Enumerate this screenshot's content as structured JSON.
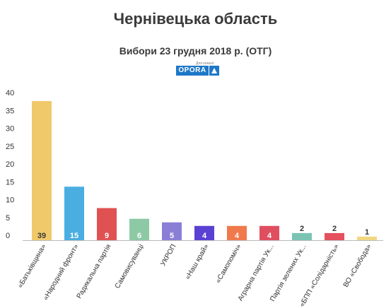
{
  "header": {
    "title": "Чернівецька область",
    "subtitle": "Вибори 23 грудня 2018 р. (ОТГ)",
    "logo_text": "OPORA",
    "logo_tagline": "Для кожної"
  },
  "chart_data": {
    "type": "bar",
    "title": "Чернівецька область",
    "subtitle": "Вибори 23 грудня 2018 р. (ОТГ)",
    "xlabel": "",
    "ylabel": "",
    "ylim": [
      0,
      40
    ],
    "yticks": [
      0,
      5,
      10,
      15,
      20,
      25,
      30,
      35,
      40
    ],
    "grid": false,
    "legend": "none",
    "categories": [
      "«Батьківщина»",
      "«Народний фронт»",
      "Радикальна партія",
      "Самовисуванці",
      "УКРОП",
      "«Наш край»",
      "«Самопоміч»",
      "Аграрна партія Ук...",
      "Партія зелених Ук...",
      "«БПП «Солідарність»",
      "ВО «Свобода»"
    ],
    "values": [
      39,
      15,
      9,
      6,
      5,
      4,
      4,
      4,
      2,
      2,
      1
    ],
    "colors": [
      "#f0c96b",
      "#4aaee0",
      "#e05252",
      "#8ec9a6",
      "#8a7fd6",
      "#5a41d4",
      "#f07a4b",
      "#e04f60",
      "#7bc4b4",
      "#e5505e",
      "#f2d782"
    ]
  }
}
